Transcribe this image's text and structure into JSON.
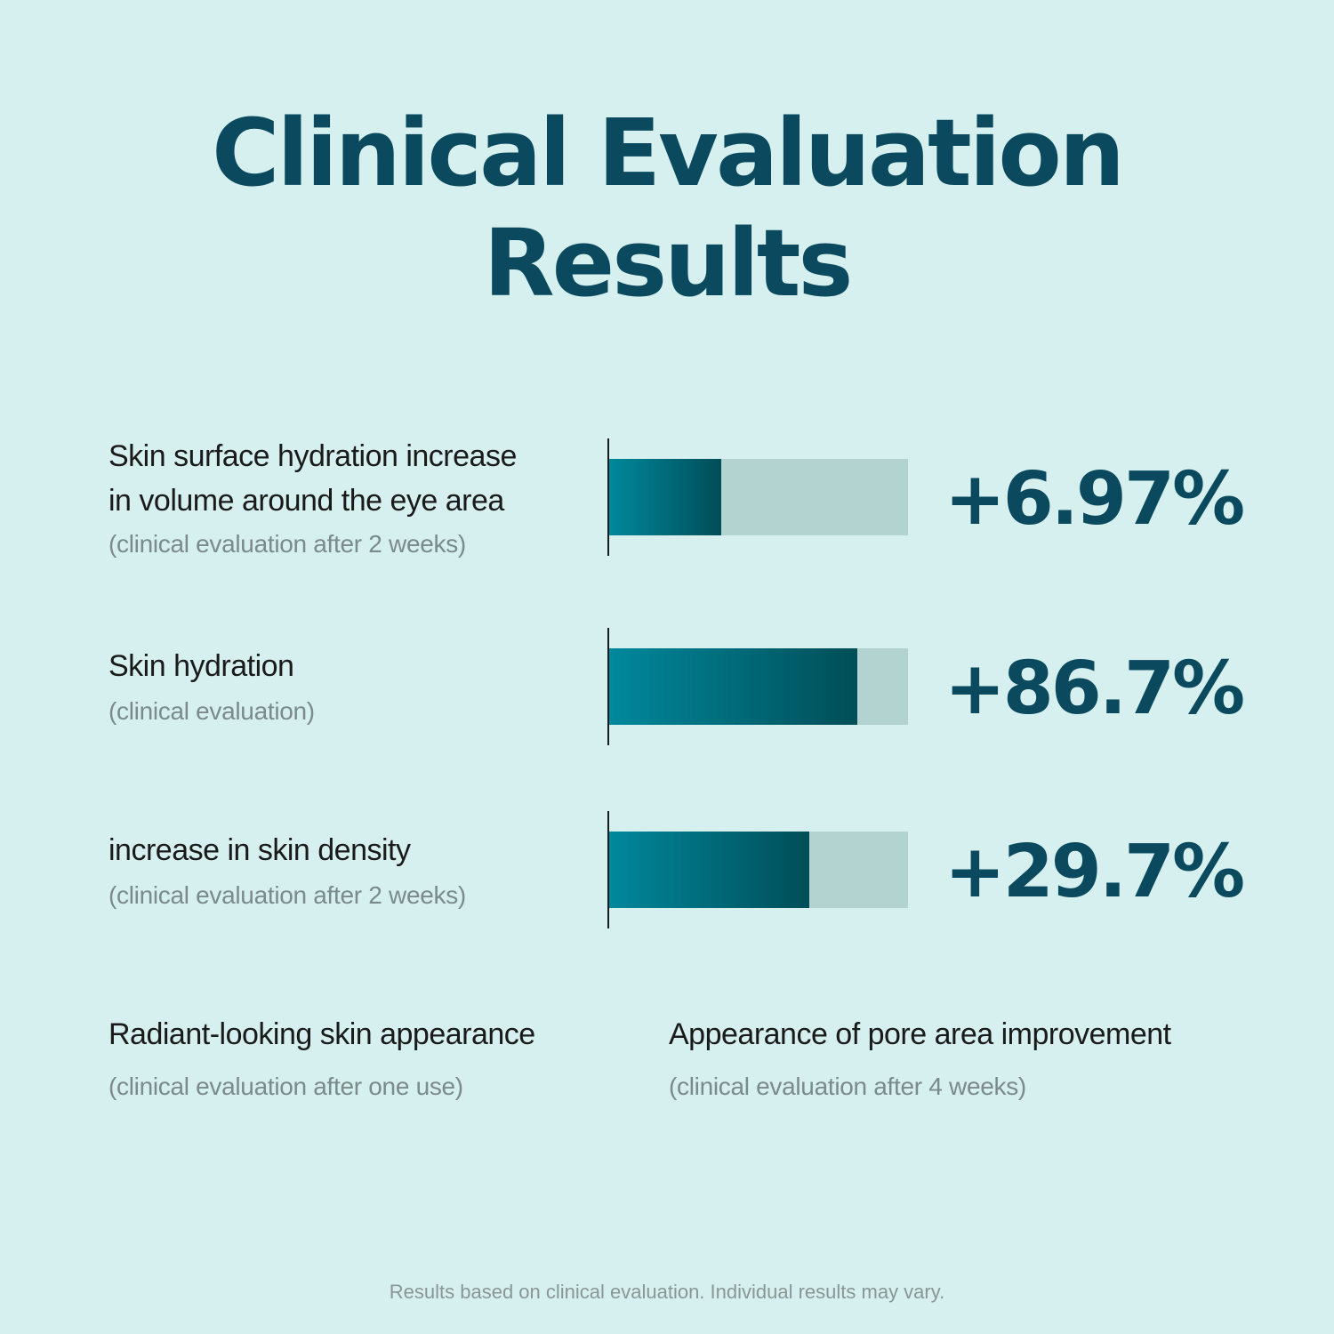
{
  "title_line1": "Clinical Evaluation",
  "title_line2": "Results",
  "chart_data": {
    "type": "bar",
    "categories": [
      "Skin surface hydration increase in volume around the eye area",
      "Skin hydration",
      "increase in skin density"
    ],
    "values": [
      6.97,
      86.7,
      29.7
    ],
    "value_labels": [
      "+6.97%",
      "+86.7%",
      "+29.7%"
    ],
    "bar_fill_fractions": [
      0.375,
      0.83,
      0.67
    ],
    "colors": {
      "bar_gradient_start": "#00889c",
      "bar_gradient_end": "#004e57",
      "track": "#b3d3d1",
      "value_text": "#0b4a5e",
      "background": "#d5f0ef"
    }
  },
  "metrics": [
    {
      "label_lines": [
        "Skin surface hydration increase",
        "in volume around the eye area"
      ],
      "sub": "(clinical evaluation after 2 weeks)"
    },
    {
      "label_lines": [
        "Skin hydration"
      ],
      "sub": "(clinical evaluation)"
    },
    {
      "label_lines": [
        "increase in skin density"
      ],
      "sub": "(clinical evaluation after 2 weeks)"
    }
  ],
  "extra_claims": [
    {
      "label": "Radiant-looking skin appearance",
      "sub": "(clinical evaluation after one use)"
    },
    {
      "label": "Appearance of pore area improvement",
      "sub": "(clinical evaluation after 4 weeks)"
    }
  ],
  "footer": "Results based on clinical evaluation. Individual results may vary."
}
